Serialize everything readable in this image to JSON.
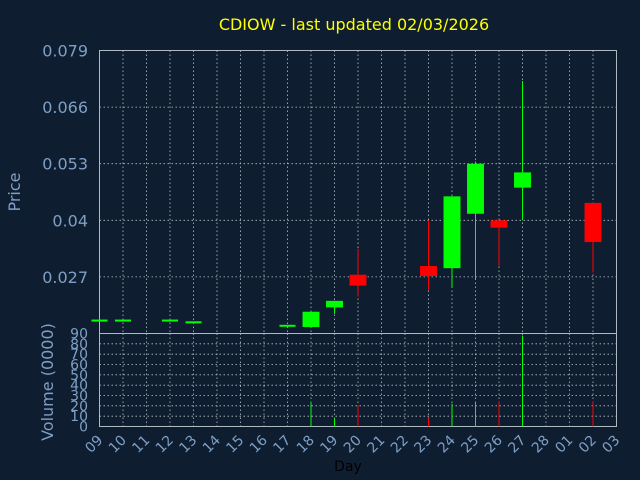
{
  "chart_data": {
    "type": "candlestick",
    "title": "CDIOW - last updated 02/03/2026",
    "ylabel": "Price",
    "volume_label": "Volume (0000)",
    "xlabel": "Day",
    "price_ylim": [
      0.014,
      0.079
    ],
    "price_ticks": [
      "0.079",
      "0.066",
      "0.053",
      "0.04",
      "0.027"
    ],
    "volume_ylim": [
      0,
      90
    ],
    "volume_ticks": [
      "0",
      "10",
      "20",
      "30",
      "40",
      "50",
      "60",
      "70",
      "80",
      "90"
    ],
    "x_ticks": [
      "09",
      "10",
      "11",
      "12",
      "13",
      "14",
      "15",
      "16",
      "17",
      "18",
      "19",
      "20",
      "21",
      "22",
      "23",
      "24",
      "25",
      "26",
      "27",
      "28",
      "01",
      "02",
      "03"
    ],
    "grid": true,
    "colors": {
      "up": "#00ff00",
      "down": "#ff0000",
      "title": "#ffff00",
      "axis": "#7f9fc5",
      "grid": "#b8c0c8",
      "background": "#0e1e30"
    },
    "candles": [
      {
        "day": "09",
        "open": 0.0172,
        "high": 0.0172,
        "low": 0.0172,
        "close": 0.0172,
        "volume": 0
      },
      {
        "day": "10",
        "open": 0.017,
        "high": 0.017,
        "low": 0.017,
        "close": 0.0172,
        "volume": 0
      },
      {
        "day": "12",
        "open": 0.017,
        "high": 0.017,
        "low": 0.017,
        "close": 0.0172,
        "volume": 0
      },
      {
        "day": "13",
        "open": 0.0164,
        "high": 0.0164,
        "low": 0.0164,
        "close": 0.0168,
        "volume": 0
      },
      {
        "day": "17",
        "open": 0.0157,
        "high": 0.0157,
        "low": 0.0157,
        "close": 0.016,
        "volume": 0
      },
      {
        "day": "18",
        "open": 0.0155,
        "high": 0.0192,
        "low": 0.0155,
        "close": 0.019,
        "volume": 24
      },
      {
        "day": "19",
        "open": 0.02,
        "high": 0.0215,
        "low": 0.0185,
        "close": 0.0215,
        "volume": 8
      },
      {
        "day": "20",
        "open": 0.0275,
        "high": 0.0335,
        "low": 0.0225,
        "close": 0.025,
        "volume": 20
      },
      {
        "day": "23",
        "open": 0.0295,
        "high": 0.04,
        "low": 0.024,
        "close": 0.0272,
        "volume": 8
      },
      {
        "day": "24",
        "open": 0.029,
        "high": 0.0455,
        "low": 0.0245,
        "close": 0.0455,
        "volume": 22
      },
      {
        "day": "25",
        "open": 0.0415,
        "high": 0.0535,
        "low": 0.0265,
        "close": 0.053,
        "volume": 24
      },
      {
        "day": "26",
        "open": 0.04,
        "high": 0.04,
        "low": 0.0295,
        "close": 0.0383,
        "volume": 24
      },
      {
        "day": "27",
        "open": 0.0475,
        "high": 0.072,
        "low": 0.04,
        "close": 0.051,
        "volume": 88
      },
      {
        "day": "02",
        "open": 0.044,
        "high": 0.044,
        "low": 0.028,
        "close": 0.035,
        "volume": 24
      }
    ]
  }
}
